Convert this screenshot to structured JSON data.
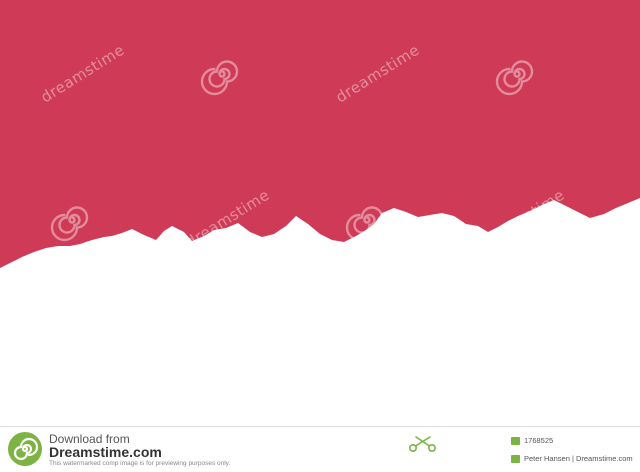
{
  "image": {
    "top_color": "#cf3a56",
    "bottom_color": "#000000",
    "edge_color": "#ffffff",
    "watermark_text": "dreamstime",
    "watermark_icon": "spiral-icon"
  },
  "footer": {
    "download_from": "Download from",
    "brand": "Dreamstime.com",
    "disclaimer": "This watermarked comp image is for previewing purposes only.",
    "image_id": "1768525",
    "credit": "Peter Hansen | Dreamstime.com",
    "brand_color": "#7cb342"
  }
}
